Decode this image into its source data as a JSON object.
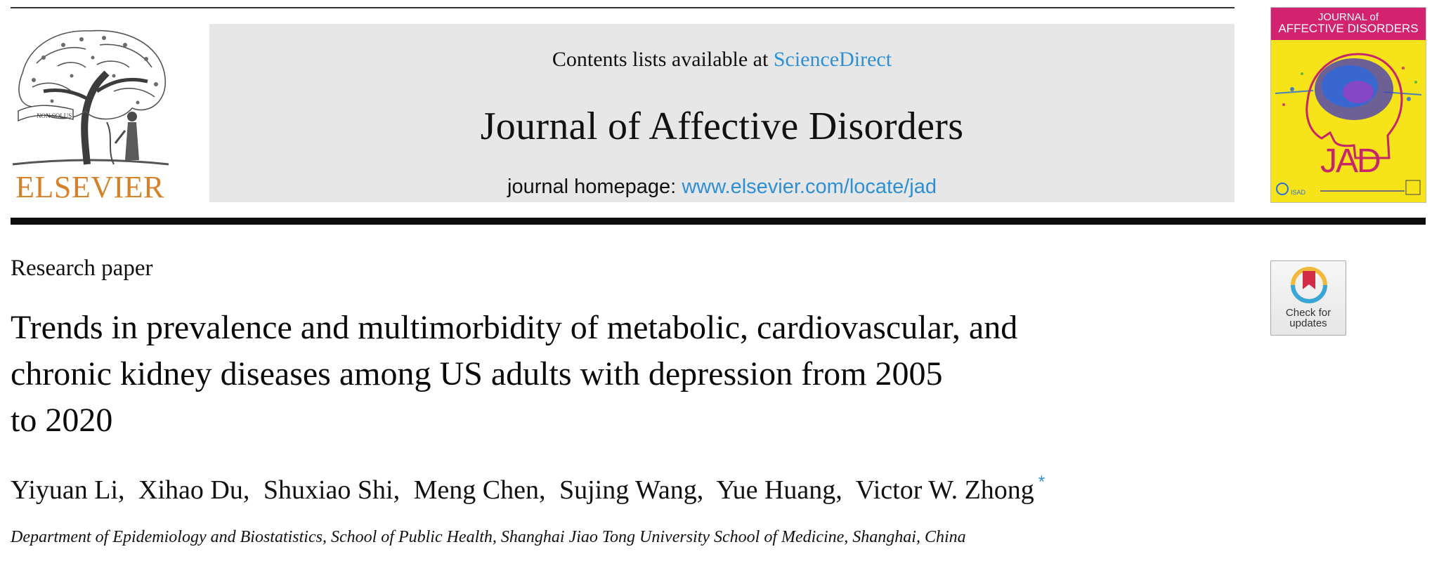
{
  "header": {
    "contents_prefix": "Contents lists available at ",
    "contents_link": "ScienceDirect",
    "journal_title": "Journal of Affective Disorders",
    "homepage_prefix": "journal homepage: ",
    "homepage_link": "www.elsevier.com/locate/jad",
    "publisher_name": "ELSEVIER",
    "publisher_motto": "NON SOLUS",
    "cover": {
      "title_line1": "JOURNAL of",
      "title_line2": "AFFECTIVE DISORDERS",
      "brand": "JAD",
      "society": "ISAD",
      "colors": {
        "background": "#f6e31a",
        "band": "#d3226f",
        "brand": "#c6246b"
      }
    },
    "link_color": "#2e8fd4",
    "publisher_color": "#d4822a"
  },
  "article": {
    "type": "Research paper",
    "title_lines": [
      "Trends in prevalence and multimorbidity of metabolic, cardiovascular, and",
      "chronic kidney diseases among US adults with depression from 2005",
      "to 2020"
    ],
    "authors": [
      {
        "name": "Yiyuan Li",
        "sep": ","
      },
      {
        "name": "Xihao Du",
        "sep": ","
      },
      {
        "name": "Shuxiao Shi",
        "sep": ","
      },
      {
        "name": "Meng Chen",
        "sep": ","
      },
      {
        "name": "Sujing Wang",
        "sep": ","
      },
      {
        "name": "Yue Huang",
        "sep": ","
      },
      {
        "name": "Victor W. Zhong",
        "sep": ""
      }
    ],
    "corresponding_mark": "*",
    "affiliation": "Department of Epidemiology and Biostatistics, School of Public Health, Shanghai Jiao Tong University School of Medicine, Shanghai, China"
  },
  "check_updates": {
    "line1": "Check for",
    "line2": "updates",
    "icon": "bookmark-ring-icon"
  }
}
